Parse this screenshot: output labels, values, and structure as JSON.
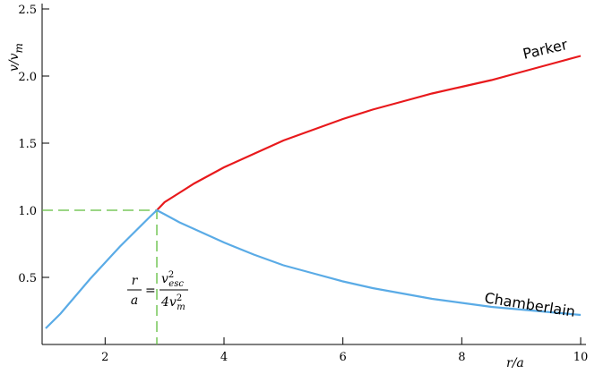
{
  "chart_data": {
    "type": "line",
    "x_label": {
      "main": "r/a"
    },
    "y_label": {
      "main": "v/v",
      "sub": "m"
    },
    "xlim": [
      0.94,
      10
    ],
    "xticks": [
      2,
      4,
      6,
      8,
      10
    ],
    "ylim": [
      0,
      2.5
    ],
    "yticks": [
      0.5,
      {
        "value": 1,
        "label": "1.0"
      },
      1.5,
      {
        "value": 2,
        "label": "2.0"
      },
      2.5
    ],
    "series": [
      {
        "name": "Parker",
        "color": "#e8191c",
        "x": [
          2.87,
          3,
          3.25,
          3.5,
          4,
          4.5,
          5,
          5.5,
          6,
          6.5,
          7,
          7.5,
          8,
          8.5,
          9,
          9.5,
          10
        ],
        "values": [
          1.0,
          1.06,
          1.13,
          1.2,
          1.32,
          1.42,
          1.52,
          1.6,
          1.68,
          1.75,
          1.81,
          1.87,
          1.92,
          1.97,
          2.03,
          2.09,
          2.15
        ]
      },
      {
        "name": "Chamberlain",
        "color": "#5aabe6",
        "x": [
          1,
          1.25,
          1.5,
          1.75,
          2,
          2.25,
          2.5,
          2.75,
          2.87,
          3,
          3.25,
          3.5,
          4,
          4.5,
          5,
          5.5,
          6,
          6.5,
          7,
          7.5,
          8,
          8.5,
          9,
          9.5,
          10
        ],
        "values": [
          0.12,
          0.23,
          0.36,
          0.49,
          0.61,
          0.73,
          0.84,
          0.95,
          1.0,
          0.97,
          0.91,
          0.86,
          0.76,
          0.67,
          0.59,
          0.53,
          0.47,
          0.42,
          0.38,
          0.34,
          0.31,
          0.28,
          0.26,
          0.24,
          0.22
        ]
      }
    ],
    "critical_point": {
      "x": 2.87,
      "y": 1.0,
      "color": "#5fbe3c"
    },
    "annotation": {
      "lhs_num": "r",
      "lhs_den": "a",
      "eq": "=",
      "rhs_num": "v",
      "rhs_num_sup": "2",
      "rhs_num_sub": "esc",
      "rhs_den": "4v",
      "rhs_den_sup": "2",
      "rhs_den_sub": "m"
    }
  }
}
